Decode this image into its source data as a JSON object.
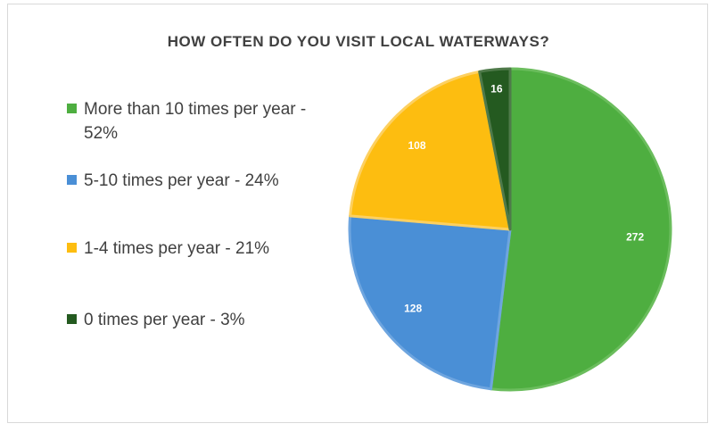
{
  "chart_data": {
    "type": "pie",
    "title": "HOW OFTEN DO YOU VISIT LOCAL WATERWAYS?",
    "categories": [
      "More than 10 times per year - 52%",
      "5-10 times per year - 24%",
      "1-4 times per year - 21%",
      "0 times per year - 3%"
    ],
    "values": [
      272,
      128,
      108,
      16
    ],
    "data_labels": [
      "272",
      "128",
      "108",
      "16"
    ],
    "colors": [
      "#4eae40",
      "#4a8fd6",
      "#fdbd10",
      "#245a20"
    ],
    "border_colors": [
      "#6bbd5d",
      "#6ea5df",
      "#fdd060",
      "#4f7a4a"
    ],
    "start_angle_deg": 0,
    "direction": "clockwise",
    "legend_position": "left"
  }
}
